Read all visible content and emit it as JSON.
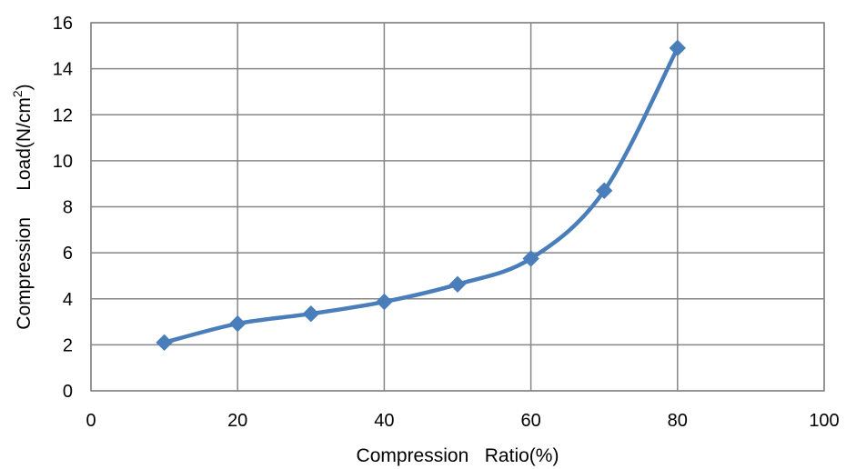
{
  "chart_data": {
    "type": "line",
    "xlabel": "Compression   Ratio(%)",
    "ylabel_main": "Compression     Load(N/cm",
    "ylabel_sup": "2",
    "ylabel_close": ")",
    "xlim": [
      0,
      100
    ],
    "ylim": [
      0,
      16
    ],
    "xticks": [
      "0",
      "20",
      "40",
      "60",
      "80",
      "100"
    ],
    "yticks": [
      "0",
      "2",
      "4",
      "6",
      "8",
      "10",
      "12",
      "14",
      "16"
    ],
    "grid": true,
    "series": [
      {
        "x": [
          10,
          20,
          30,
          40,
          50,
          60,
          70,
          80
        ],
        "y": [
          2.1,
          2.92,
          3.35,
          3.87,
          4.63,
          5.75,
          8.7,
          14.9
        ],
        "color": "#4a7ebb",
        "marker": "diamond"
      }
    ]
  }
}
